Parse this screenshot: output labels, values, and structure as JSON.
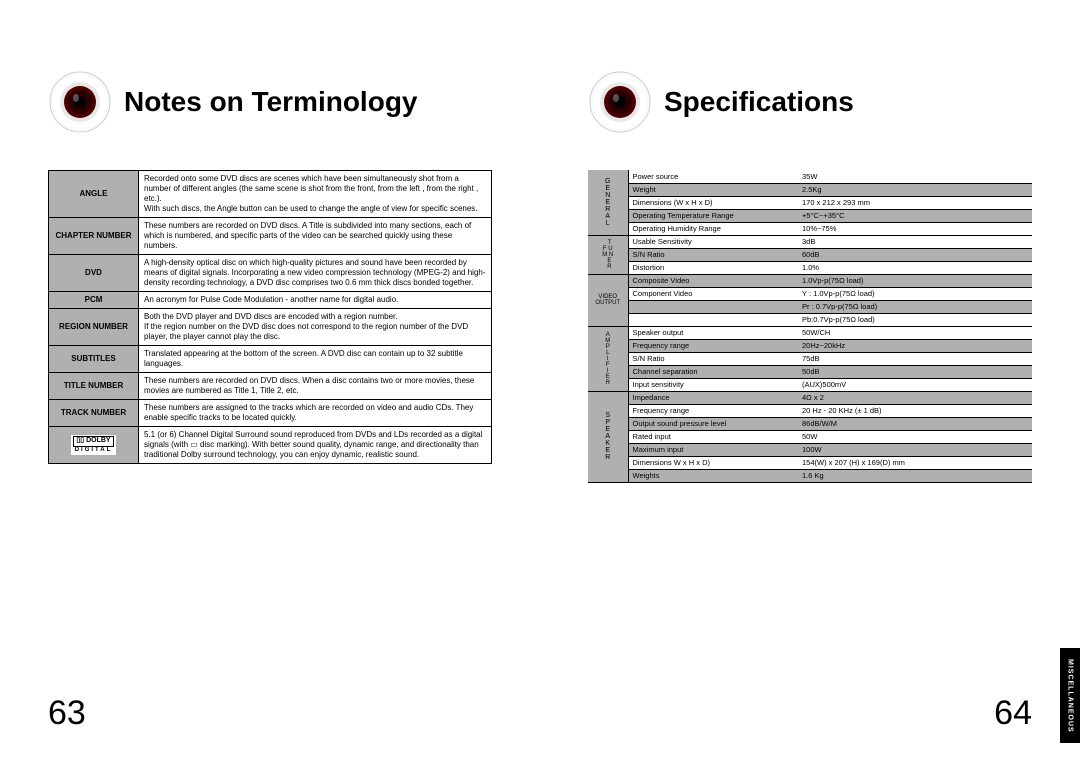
{
  "leftPage": {
    "title": "Notes on Terminology",
    "pageNumber": "63",
    "terms": [
      {
        "label": "ANGLE",
        "desc": "Recorded onto some DVD discs are scenes which have been simultaneously shot from a number of different angles (the same scene is shot from the front, from the left , from the right , etc.).\nWith such discs, the Angle button can be used to change the angle of view for specific scenes."
      },
      {
        "label": "CHAPTER NUMBER",
        "desc": "These numbers are recorded on DVD discs. A Title is subdivided into many sections, each of which is numbered, and specific parts of the video can be searched quickly using these numbers."
      },
      {
        "label": "DVD",
        "desc": "A high-density optical disc on which high-quality pictures and sound have been recorded by means of digital signals. Incorporating a new video compression technology (MPEG-2) and high-density recording technology, a DVD disc comprises two 0.6 mm thick discs bonded together."
      },
      {
        "label": "PCM",
        "desc": "An acronym for Pulse Code Modulation - another name for digital audio."
      },
      {
        "label": "REGION NUMBER",
        "desc": "Both the DVD player and DVD discs are encoded with a region number.\nIf the region number on the DVD disc does not correspond to the region number of the DVD player, the player cannot play the disc."
      },
      {
        "label": "SUBTITLES",
        "desc": "Translated appearing at the bottom of the screen. A DVD disc can contain up to 32 subtitle languages."
      },
      {
        "label": "TITLE NUMBER",
        "desc": "These numbers are recorded on DVD discs. When a disc contains two or more movies, these movies are numbered as Title 1, Title 2, etc."
      },
      {
        "label": "TRACK NUMBER",
        "desc": "These numbers are assigned to the tracks which are recorded on video and audio CDs. They enable specific tracks to be located quickly."
      },
      {
        "label": "DOLBY",
        "desc": "5.1 (or 6) Channel Digital Surround sound reproduced from DVDs and LDs recorded as a digital signals (with ▭ disc marking). With better sound quality, dynamic range, and directionality than traditional Dolby surround technology, you can enjoy dynamic, realistic sound."
      }
    ]
  },
  "rightPage": {
    "title": "Specifications",
    "pageNumber": "64",
    "sideTab": "MISCELLANEOUS",
    "groups": [
      {
        "cat": "GENERAL",
        "rows": [
          {
            "k": "Power source",
            "v": "35W",
            "w": true
          },
          {
            "k": "Weight",
            "v": "2.5Kg",
            "w": false
          },
          {
            "k": "Dimensions (W x H x D)",
            "v": "170 x 212 x 293 mm",
            "w": true
          },
          {
            "k": "Operating Temperature Range",
            "v": "+5°C~+35°C",
            "w": false
          },
          {
            "k": "Operating Humidity Range",
            "v": "10%~75%",
            "w": true
          }
        ]
      },
      {
        "cat": "FM TUNER",
        "rows": [
          {
            "k": "Usable Sensitivity",
            "v": "3dB",
            "w": true
          },
          {
            "k": "S/N Ratio",
            "v": "60dB",
            "w": false
          },
          {
            "k": "Distortion",
            "v": "1.0%",
            "w": true
          }
        ]
      },
      {
        "cat": "VIDEO OUTPUT",
        "rows": [
          {
            "k": "Composite Video",
            "v": "1.0Vp-p(75Ω load)",
            "w": false
          },
          {
            "k": "Component Video",
            "v": "Y : 1.0Vp-p(75Ω load)",
            "w": true
          },
          {
            "k": "",
            "v": "Pr : 0.7Vp-p(75Ω load)",
            "w": false
          },
          {
            "k": "",
            "v": "Pb:0.7Vp-p(75Ω load)",
            "w": true
          }
        ]
      },
      {
        "cat": "AMPLIFIER",
        "rows": [
          {
            "k": "Speaker output",
            "v": "50W/CH",
            "w": true
          },
          {
            "k": "Frequency range",
            "v": "20Hz~20kHz",
            "w": false
          },
          {
            "k": "S/N Ratio",
            "v": "75dB",
            "w": true
          },
          {
            "k": "Channel separation",
            "v": "50dB",
            "w": false
          },
          {
            "k": "Input sensitivity",
            "v": "(AUX)500mV",
            "w": true
          }
        ]
      },
      {
        "cat": "SPEAKER",
        "rows": [
          {
            "k": "Impedance",
            "v": "4Ω x 2",
            "w": false
          },
          {
            "k": "Frequency range",
            "v": "20 Hz - 20 KHz (± 1 dB)",
            "w": true
          },
          {
            "k": "Output sound pressure level",
            "v": "86dB/W/M",
            "w": false
          },
          {
            "k": "Rated input",
            "v": "50W",
            "w": true
          },
          {
            "k": "Maximum input",
            "v": "100W",
            "w": false
          },
          {
            "k": "Dimensions  W x H x D)",
            "v": "154(W) x 207 (H) x 169(D) mm",
            "w": true
          },
          {
            "k": "Weights",
            "v": "1.6 Kg",
            "w": false
          }
        ]
      }
    ]
  },
  "colors": {
    "background": "#ffffff",
    "cellShade": "#b0b0b0",
    "line": "#000000"
  }
}
